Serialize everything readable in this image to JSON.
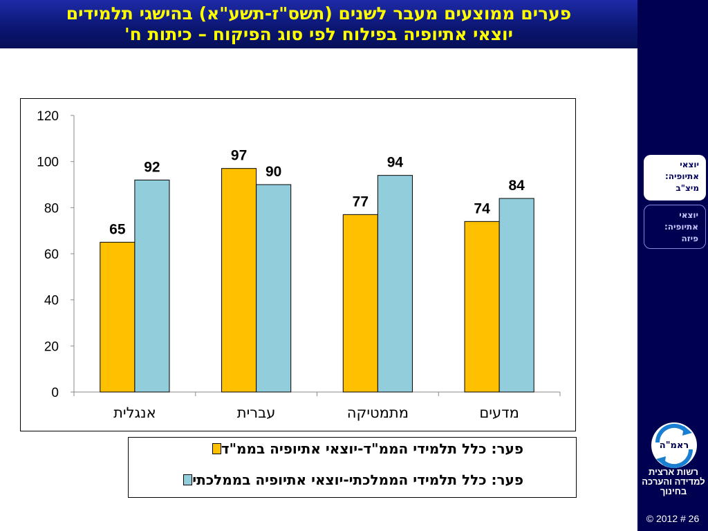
{
  "title": {
    "line1": "פערים ממוצעים מעבר לשנים (תשס\"ז-תשע\"א) בהישגי תלמידים",
    "line2": "יוצאי אתיופיה בפילוח לפי סוג הפיקוח – כיתות ח'"
  },
  "nav": {
    "items": [
      {
        "label": "יוצאי אתיופיה: מיצ\"ב",
        "active": true
      },
      {
        "label": "יוצאי אתיופיה: פיזה",
        "active": false
      }
    ]
  },
  "logo": {
    "text": "ראמ\"ה"
  },
  "org_name": "רשות ארצית למדידה והערכה בחינוך",
  "footer": "© 2012 # 26",
  "colors": {
    "series1": "#ffc000",
    "series2": "#92cddc",
    "title": "#ffff00",
    "panel": "#000050"
  },
  "chart_data": {
    "type": "bar",
    "categories": [
      "אנגלית",
      "עברית",
      "מתמטיקה",
      "מדעים"
    ],
    "series": [
      {
        "name": "פער: כלל תלמידי הממ\"ד-יוצאי אתיופיה בממ\"ד",
        "values": [
          65,
          97,
          77,
          74
        ],
        "color": "#ffc000"
      },
      {
        "name": "פער: כלל תלמידי הממלכתי-יוצאי אתיופיה בממלכתי",
        "values": [
          92,
          90,
          94,
          84
        ],
        "color": "#92cddc"
      }
    ],
    "ylim": [
      0,
      120
    ],
    "yticks": [
      0,
      20,
      40,
      60,
      80,
      100,
      120
    ],
    "grid": false,
    "legend": "bottom"
  }
}
